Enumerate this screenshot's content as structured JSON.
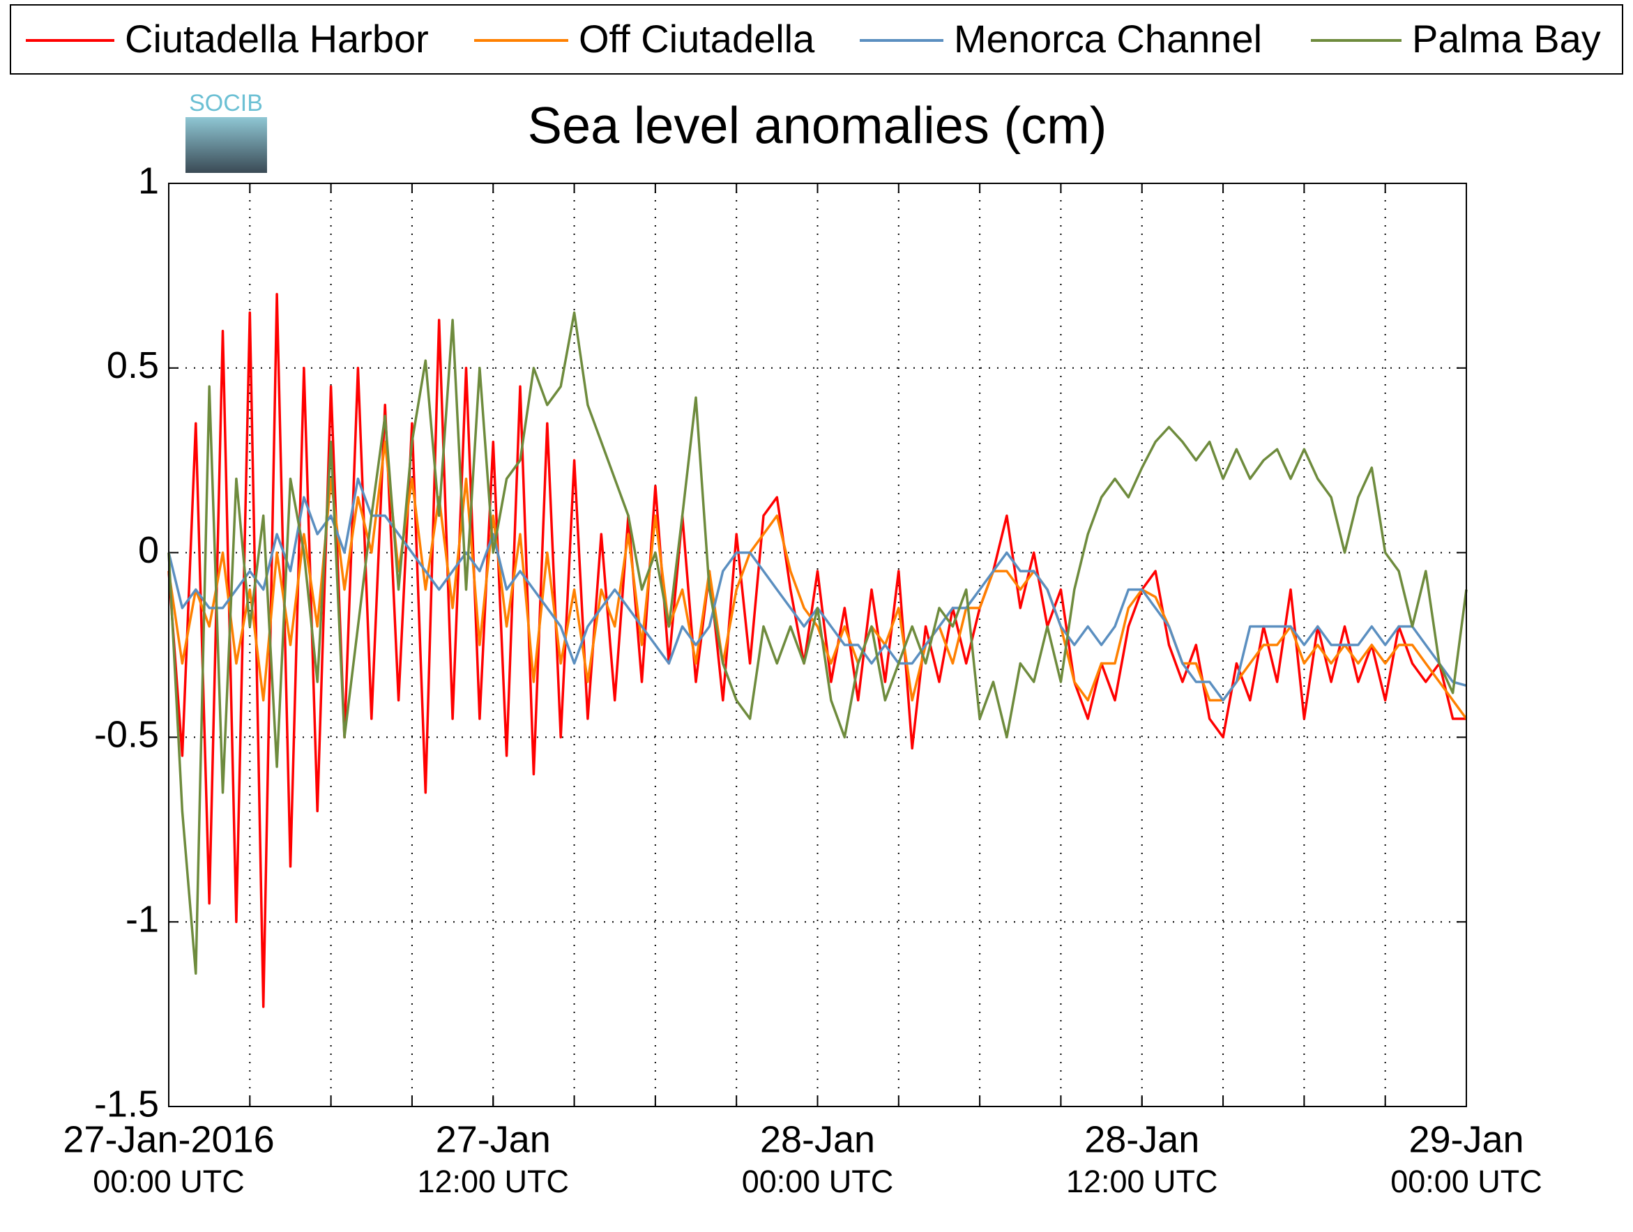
{
  "chart_data": {
    "type": "line",
    "title": "Sea level anomalies (cm)",
    "logo": "SOCIB",
    "x": [
      0,
      0.5,
      1,
      1.5,
      2,
      2.5,
      3,
      3.5,
      4,
      4.5,
      5,
      5.5,
      6,
      6.5,
      7,
      7.5,
      8,
      8.5,
      9,
      9.5,
      10,
      10.5,
      11,
      11.5,
      12,
      12.5,
      13,
      13.5,
      14,
      14.5,
      15,
      15.5,
      16,
      16.5,
      17,
      17.5,
      18,
      18.5,
      19,
      19.5,
      20,
      20.5,
      21,
      21.5,
      22,
      22.5,
      23,
      23.5,
      24,
      24.5,
      25,
      25.5,
      26,
      26.5,
      27,
      27.5,
      28,
      28.5,
      29,
      29.5,
      30,
      30.5,
      31,
      31.5,
      32,
      32.5,
      33,
      33.5,
      34,
      34.5,
      35,
      35.5,
      36,
      36.5,
      37,
      37.5,
      38,
      38.5,
      39,
      39.5,
      40,
      40.5,
      41,
      41.5,
      42,
      42.5,
      43,
      43.5,
      44,
      44.5,
      45,
      45.5,
      46,
      46.5,
      47,
      47.5,
      48
    ],
    "xlim": [
      0,
      48
    ],
    "xticks": [
      {
        "value": 0,
        "label": [
          "27-Jan-2016",
          "00:00 UTC"
        ]
      },
      {
        "value": 12,
        "label": [
          "27-Jan",
          "12:00 UTC"
        ]
      },
      {
        "value": 24,
        "label": [
          "28-Jan",
          "00:00 UTC"
        ]
      },
      {
        "value": 36,
        "label": [
          "28-Jan",
          "12:00 UTC"
        ]
      },
      {
        "value": 48,
        "label": [
          "29-Jan",
          "00:00 UTC"
        ]
      }
    ],
    "xminor_ticks": [
      3,
      6,
      9,
      12,
      15,
      18,
      21,
      24,
      27,
      30,
      33,
      36,
      39,
      42,
      45
    ],
    "ylim": [
      -1.5,
      1
    ],
    "yticks": [
      -1.5,
      -1,
      -0.5,
      0,
      0.5,
      1
    ],
    "grid": true,
    "series": [
      {
        "name": "Ciutadella Harbor",
        "color": "#ff0000",
        "values": [
          -0.05,
          -0.55,
          0.35,
          -0.95,
          0.6,
          -1.0,
          0.65,
          -1.23,
          0.7,
          -0.85,
          0.5,
          -0.7,
          0.45,
          -0.5,
          0.5,
          -0.45,
          0.4,
          -0.4,
          0.35,
          -0.65,
          0.63,
          -0.45,
          0.5,
          -0.45,
          0.3,
          -0.55,
          0.45,
          -0.6,
          0.35,
          -0.5,
          0.25,
          -0.45,
          0.05,
          -0.4,
          0.1,
          -0.35,
          0.18,
          -0.3,
          0.1,
          -0.35,
          -0.05,
          -0.4,
          0.05,
          -0.3,
          0.1,
          0.15,
          -0.1,
          -0.3,
          -0.05,
          -0.35,
          -0.15,
          -0.4,
          -0.1,
          -0.35,
          -0.05,
          -0.53,
          -0.2,
          -0.35,
          -0.15,
          -0.3,
          -0.15,
          -0.05,
          0.1,
          -0.15,
          0,
          -0.2,
          -0.1,
          -0.35,
          -0.45,
          -0.3,
          -0.4,
          -0.2,
          -0.1,
          -0.05,
          -0.25,
          -0.35,
          -0.25,
          -0.45,
          -0.5,
          -0.3,
          -0.4,
          -0.2,
          -0.35,
          -0.1,
          -0.45,
          -0.2,
          -0.35,
          -0.2,
          -0.35,
          -0.25,
          -0.4,
          -0.2,
          -0.3,
          -0.35,
          -0.3,
          -0.45,
          -0.45
        ]
      },
      {
        "name": "Off Ciutadella",
        "color": "#ff8000",
        "values": [
          -0.05,
          -0.3,
          -0.1,
          -0.2,
          0,
          -0.3,
          -0.1,
          -0.4,
          0,
          -0.25,
          0.05,
          -0.2,
          0.2,
          -0.1,
          0.15,
          0,
          0.3,
          -0.05,
          0.2,
          -0.1,
          0.15,
          -0.15,
          0.2,
          -0.25,
          0.1,
          -0.2,
          0.05,
          -0.35,
          0,
          -0.3,
          -0.1,
          -0.35,
          -0.1,
          -0.2,
          0.05,
          -0.25,
          0.1,
          -0.2,
          -0.1,
          -0.3,
          -0.05,
          -0.3,
          -0.1,
          0,
          0.05,
          0.1,
          -0.05,
          -0.15,
          -0.2,
          -0.3,
          -0.2,
          -0.3,
          -0.2,
          -0.25,
          -0.15,
          -0.4,
          -0.25,
          -0.2,
          -0.3,
          -0.15,
          -0.15,
          -0.05,
          -0.05,
          -0.1,
          -0.05,
          -0.1,
          -0.2,
          -0.35,
          -0.4,
          -0.3,
          -0.3,
          -0.15,
          -0.1,
          -0.12,
          -0.2,
          -0.3,
          -0.3,
          -0.4,
          -0.4,
          -0.35,
          -0.3,
          -0.25,
          -0.25,
          -0.2,
          -0.3,
          -0.25,
          -0.3,
          -0.25,
          -0.3,
          -0.25,
          -0.3,
          -0.25,
          -0.25,
          -0.3,
          -0.35,
          -0.4,
          -0.45
        ]
      },
      {
        "name": "Menorca Channel",
        "color": "#5b8fc0",
        "values": [
          0,
          -0.15,
          -0.1,
          -0.15,
          -0.15,
          -0.1,
          -0.05,
          -0.1,
          0.05,
          -0.05,
          0.15,
          0.05,
          0.1,
          0,
          0.2,
          0.1,
          0.1,
          0.05,
          0,
          -0.05,
          -0.1,
          -0.05,
          0,
          -0.05,
          0.05,
          -0.1,
          -0.05,
          -0.1,
          -0.15,
          -0.2,
          -0.3,
          -0.2,
          -0.15,
          -0.1,
          -0.15,
          -0.2,
          -0.25,
          -0.3,
          -0.2,
          -0.25,
          -0.2,
          -0.05,
          0,
          0,
          -0.05,
          -0.1,
          -0.15,
          -0.2,
          -0.15,
          -0.2,
          -0.25,
          -0.25,
          -0.3,
          -0.25,
          -0.3,
          -0.3,
          -0.25,
          -0.2,
          -0.15,
          -0.15,
          -0.1,
          -0.05,
          0,
          -0.05,
          -0.05,
          -0.1,
          -0.2,
          -0.25,
          -0.2,
          -0.25,
          -0.2,
          -0.1,
          -0.1,
          -0.15,
          -0.2,
          -0.3,
          -0.35,
          -0.35,
          -0.4,
          -0.35,
          -0.2,
          -0.2,
          -0.2,
          -0.2,
          -0.25,
          -0.2,
          -0.25,
          -0.25,
          -0.25,
          -0.2,
          -0.25,
          -0.2,
          -0.2,
          -0.25,
          -0.3,
          -0.35,
          -0.36
        ]
      },
      {
        "name": "Palma Bay",
        "color": "#6e8b3d",
        "values": [
          0,
          -0.7,
          -1.14,
          0.45,
          -0.65,
          0.2,
          -0.2,
          0.1,
          -0.58,
          0.2,
          0,
          -0.35,
          0.3,
          -0.5,
          -0.2,
          0.1,
          0.37,
          -0.1,
          0.3,
          0.52,
          0.1,
          0.63,
          -0.1,
          0.5,
          0,
          0.2,
          0.25,
          0.5,
          0.4,
          0.45,
          0.65,
          0.4,
          0.3,
          0.2,
          0.1,
          -0.1,
          0,
          -0.2,
          0.1,
          0.42,
          -0.1,
          -0.3,
          -0.4,
          -0.45,
          -0.2,
          -0.3,
          -0.2,
          -0.3,
          -0.15,
          -0.4,
          -0.5,
          -0.3,
          -0.2,
          -0.4,
          -0.3,
          -0.2,
          -0.3,
          -0.15,
          -0.2,
          -0.1,
          -0.45,
          -0.35,
          -0.5,
          -0.3,
          -0.35,
          -0.2,
          -0.35,
          -0.1,
          0.05,
          0.15,
          0.2,
          0.15,
          0.23,
          0.3,
          0.34,
          0.3,
          0.25,
          0.3,
          0.2,
          0.28,
          0.2,
          0.25,
          0.28,
          0.2,
          0.28,
          0.2,
          0.15,
          0,
          0.15,
          0.23,
          0,
          -0.05,
          -0.2,
          -0.05,
          -0.3,
          -0.38,
          -0.1
        ]
      }
    ]
  }
}
